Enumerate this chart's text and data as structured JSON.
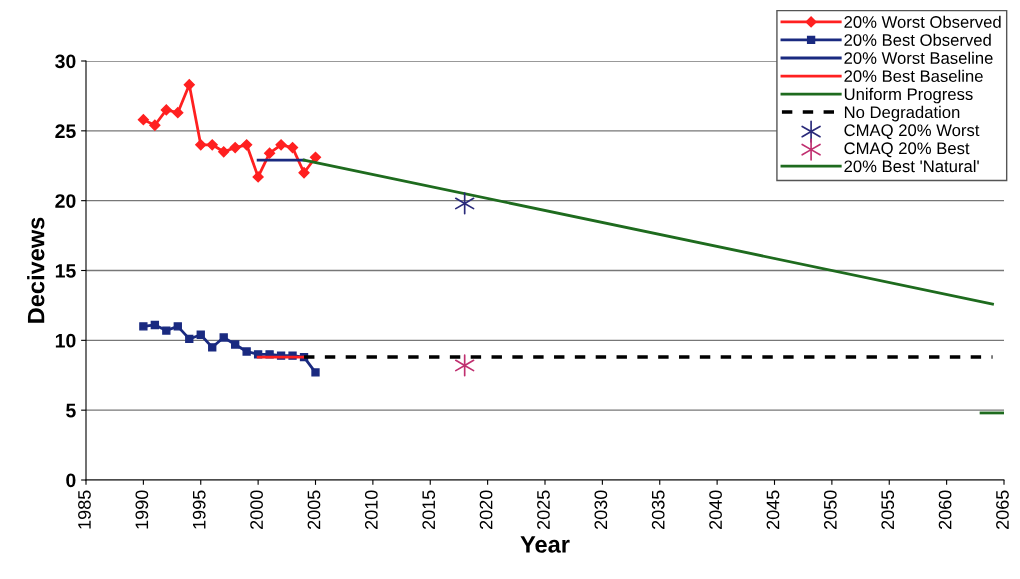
{
  "chart_data": {
    "type": "line",
    "xlabel": "Year",
    "ylabel": "Decivews",
    "xlim": [
      1985,
      2065
    ],
    "xticks": [
      1985,
      1990,
      1995,
      2000,
      2005,
      2010,
      2015,
      2020,
      2025,
      2030,
      2035,
      2040,
      2045,
      2050,
      2055,
      2060,
      2065
    ],
    "ylim": [
      0,
      30
    ],
    "yticks": [
      0,
      5,
      10,
      15,
      20,
      25,
      30
    ],
    "grid": "y",
    "legend": "top right",
    "series": [
      {
        "name": "20% Worst Observed",
        "color": "#ff2020",
        "marker": "diamond",
        "line_style": "solid",
        "x": [
          1990,
          1991,
          1992,
          1993,
          1994,
          1995,
          1996,
          1997,
          1998,
          1999,
          2000,
          2001,
          2002,
          2003,
          2004,
          2005
        ],
        "values": [
          25.8,
          25.4,
          26.5,
          26.3,
          28.3,
          24.0,
          24.0,
          23.5,
          23.8,
          24.0,
          21.7,
          23.4,
          24.0,
          23.8,
          22.0,
          23.1
        ]
      },
      {
        "name": "20% Best Observed",
        "color": "#1a2a80",
        "marker": "square",
        "line_style": "solid",
        "x": [
          1990,
          1991,
          1992,
          1993,
          1994,
          1995,
          1996,
          1997,
          1998,
          1999,
          2000,
          2001,
          2002,
          2003,
          2004,
          2005
        ],
        "values": [
          11.0,
          11.1,
          10.7,
          11.0,
          10.1,
          10.4,
          9.5,
          10.2,
          9.7,
          9.2,
          9.0,
          9.0,
          8.9,
          8.9,
          8.8,
          7.7
        ]
      },
      {
        "name": "20% Worst Baseline",
        "color": "#1a2a80",
        "marker": "none",
        "line_style": "solid",
        "x": [
          2000,
          2004
        ],
        "values": [
          22.9,
          22.9
        ]
      },
      {
        "name": "20% Best Baseline",
        "color": "#ff2020",
        "marker": "none",
        "line_style": "solid",
        "x": [
          2000,
          2004
        ],
        "values": [
          8.8,
          8.8
        ]
      },
      {
        "name": "Uniform Progress",
        "color": "#1e6b1e",
        "marker": "none",
        "line_style": "solid",
        "x": [
          2004,
          2064
        ],
        "values": [
          22.9,
          12.6
        ]
      },
      {
        "name": "No Degradation",
        "color": "#000000",
        "marker": "none",
        "line_style": "dashed",
        "x": [
          2004,
          2064
        ],
        "values": [
          8.8,
          8.8
        ]
      },
      {
        "name": "CMAQ 20% Worst",
        "type": "scatter",
        "color": "#2a2a7a",
        "marker": "cross",
        "x": [
          2018
        ],
        "values": [
          19.8
        ]
      },
      {
        "name": "CMAQ 20% Best",
        "type": "scatter",
        "color": "#c03070",
        "marker": "cross",
        "x": [
          2018
        ],
        "values": [
          8.2
        ]
      },
      {
        "name": "20% Best 'Natural'",
        "type": "line",
        "color": "#1e6b1e",
        "marker": "none",
        "line_style": "solid",
        "x": [
          2063,
          2065
        ],
        "values": [
          4.8,
          4.8
        ]
      }
    ]
  }
}
